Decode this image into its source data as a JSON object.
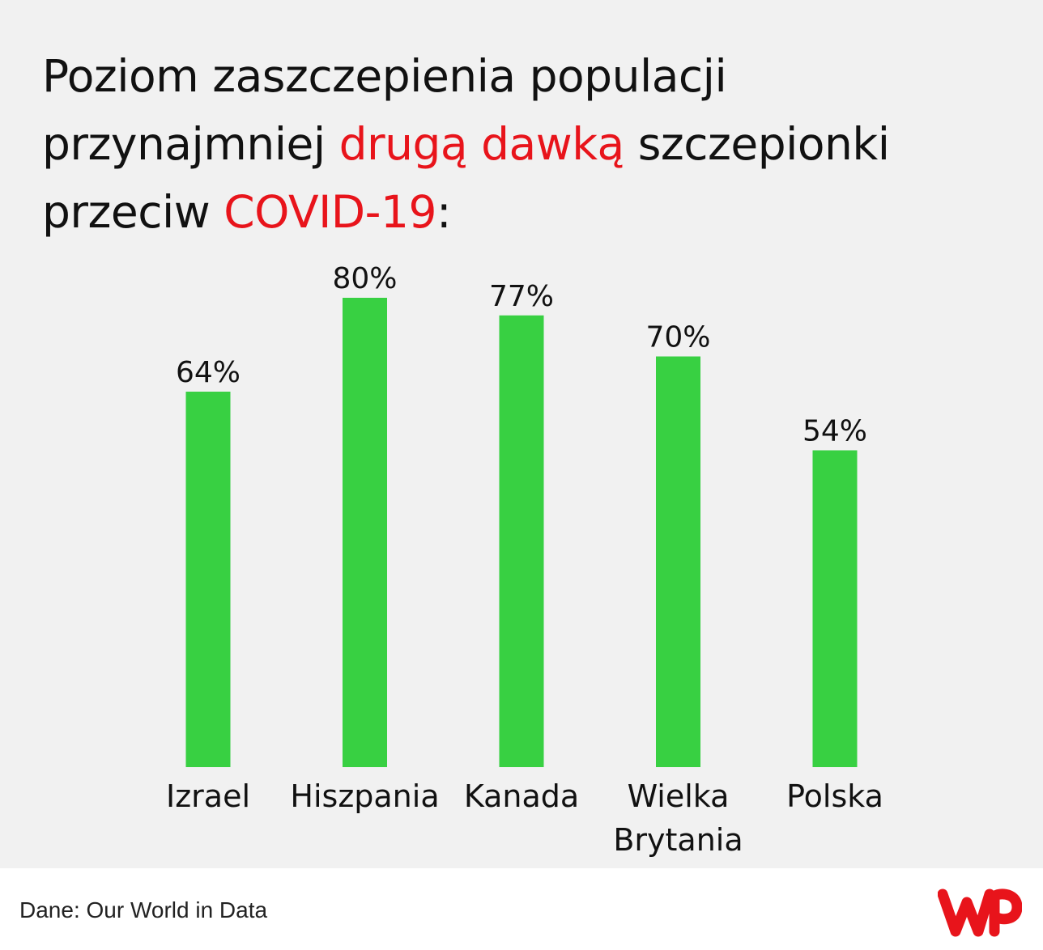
{
  "title": {
    "part1": "Poziom zaszczepienia populacji przynajmniej ",
    "part2": "drugą dawką",
    "part3": " szczepionki przeciw ",
    "part4": "COVID-19",
    "part5": ":"
  },
  "colors": {
    "background": "#f1f1f1",
    "bar": "#38d042",
    "highlight": "#e8141b",
    "text": "#111111",
    "logo": "#e8141b"
  },
  "chart_data": {
    "type": "bar",
    "categories": [
      "Izrael",
      "Hiszpania",
      "Kanada",
      "Wielka Brytania",
      "Polska"
    ],
    "category_lines": [
      [
        "Izrael"
      ],
      [
        "Hiszpania"
      ],
      [
        "Kanada"
      ],
      [
        "Wielka",
        "Brytania"
      ],
      [
        "Polska"
      ]
    ],
    "values": [
      64,
      80,
      77,
      70,
      54
    ],
    "value_labels": [
      "64%",
      "80%",
      "77%",
      "70%",
      "54%"
    ],
    "unit": "%",
    "ylim": [
      0,
      100
    ],
    "grid": false,
    "legend": "none"
  },
  "footer": {
    "source": "Dane: Our World in Data",
    "logo_icon": "wp-logo-icon"
  }
}
